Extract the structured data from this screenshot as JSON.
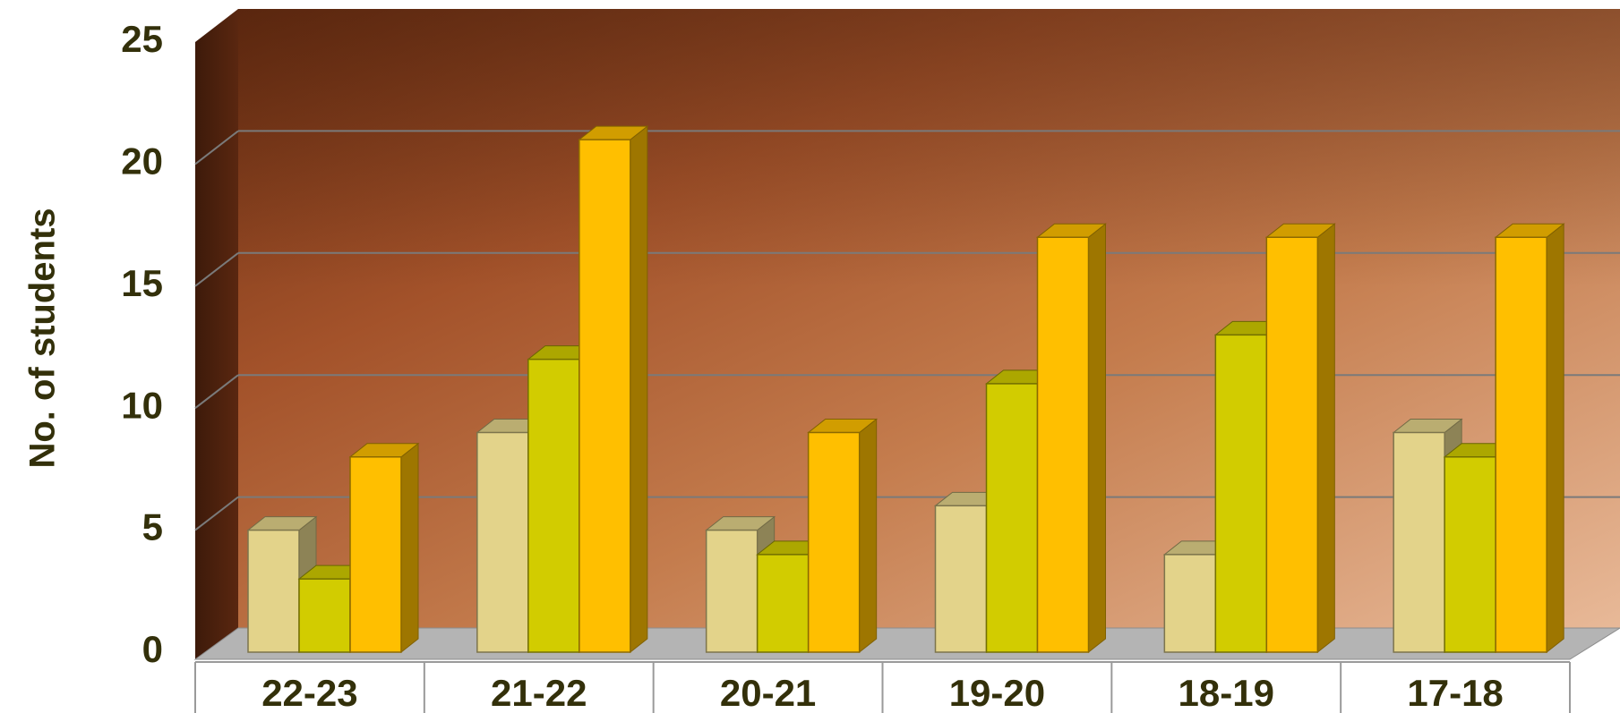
{
  "chart_data": {
    "type": "bar",
    "title": "",
    "xlabel": "",
    "ylabel": "No. of students",
    "categories": [
      "22-23",
      "21-22",
      "20-21",
      "19-20",
      "18-19",
      "17-18"
    ],
    "series": [
      {
        "values": [
          5,
          9,
          5,
          6,
          4,
          9
        ],
        "color": "#e3d38a"
      },
      {
        "values": [
          3,
          12,
          4,
          11,
          13,
          8
        ],
        "color": "#d2cc00"
      },
      {
        "values": [
          8,
          21,
          9,
          17,
          17,
          17
        ],
        "color": "#ffbf00"
      }
    ],
    "ylim": [
      0,
      25
    ],
    "yticks": [
      0,
      5,
      10,
      15,
      20,
      25
    ],
    "grid": true,
    "legend": "none",
    "colors": {
      "wall_dark": "#6b3015",
      "wall_mid": "#b25f2e",
      "wall_light": "#dfae8c",
      "floor": "#b4b4b4",
      "text": "#33300a"
    }
  }
}
